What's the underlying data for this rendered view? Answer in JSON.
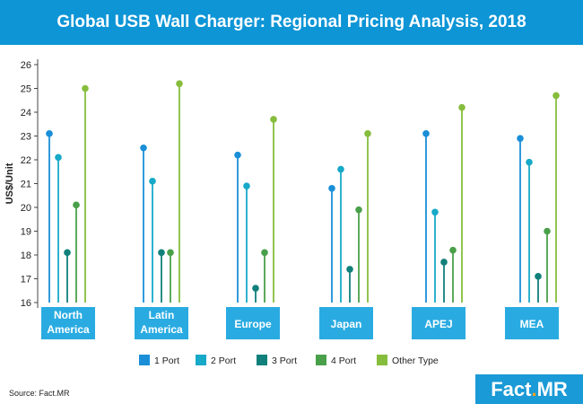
{
  "title": "Global USB Wall Charger: Regional Pricing Analysis, 2018",
  "source": "Source: Fact.MR",
  "logo": {
    "part1": "Fact",
    "dot": ".",
    "part2": "MR"
  },
  "colors": {
    "title_bar": "#0d95d6",
    "category_box": "#29abe2",
    "axis_box": "#1b6fa0"
  },
  "chart_data": {
    "type": "lollipop",
    "title": "Global USB Wall Charger: Regional Pricing Analysis, 2018",
    "ylabel": "US$/Unit",
    "xlabel": "",
    "ylim": [
      16,
      26
    ],
    "yticks": [
      16,
      17,
      18,
      19,
      20,
      21,
      22,
      23,
      24,
      25,
      26
    ],
    "categories": [
      {
        "lines": [
          "North",
          "America"
        ]
      },
      {
        "lines": [
          "Latin",
          "America"
        ]
      },
      {
        "lines": [
          "Europe"
        ]
      },
      {
        "lines": [
          "Japan"
        ]
      },
      {
        "lines": [
          "APEJ"
        ]
      },
      {
        "lines": [
          "MEA"
        ]
      }
    ],
    "series": [
      {
        "name": "1 Port",
        "color": "#1a8fd8",
        "values": [
          23.1,
          22.5,
          22.2,
          20.8,
          23.1,
          22.9
        ]
      },
      {
        "name": "2 Port",
        "color": "#17a9c8",
        "values": [
          22.1,
          21.1,
          20.9,
          21.6,
          19.8,
          21.9
        ]
      },
      {
        "name": "3 Port",
        "color": "#11807a",
        "values": [
          18.1,
          18.1,
          16.6,
          17.4,
          17.7,
          17.1
        ]
      },
      {
        "name": "4 Port",
        "color": "#4aa04a",
        "values": [
          20.1,
          18.1,
          18.1,
          19.9,
          18.2,
          19.0
        ]
      },
      {
        "name": "Other Type",
        "color": "#86bd3c",
        "values": [
          25.0,
          25.2,
          23.7,
          23.1,
          24.2,
          24.7
        ]
      }
    ],
    "legend_position": "bottom",
    "grid": false
  }
}
